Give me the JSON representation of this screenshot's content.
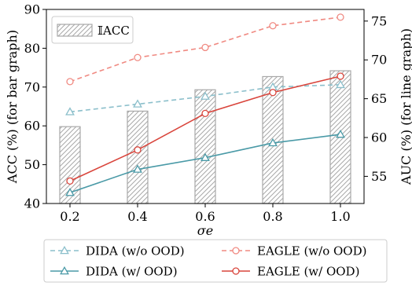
{
  "chart_data": {
    "type": "bar+line",
    "x": [
      0.2,
      0.4,
      0.6,
      0.8,
      1.0
    ],
    "xlabel": "σe",
    "ylabel_left": "ACC (%) (for bar graph)",
    "ylabel_right": "AUC (%) (for line graph)",
    "ylim_left": [
      40,
      90
    ],
    "ylim_right": [
      51.5,
      76.5
    ],
    "yticks_left": [
      40,
      50,
      60,
      70,
      80,
      90
    ],
    "yticks_right": [
      55,
      60,
      65,
      70,
      75
    ],
    "bars": {
      "name": "𝕀ACC",
      "values": [
        59.8,
        63.8,
        69.3,
        72.7,
        74.2
      ],
      "color": "#ffffff",
      "edge_color": "#a8a8a8",
      "hatch": "////"
    },
    "series": [
      {
        "name": "DIDA (w/o OOD)",
        "values": [
          63.3,
          64.3,
          65.3,
          66.5,
          66.8
        ],
        "color": "#8bbfcb",
        "marker": "triangle",
        "dashed": true
      },
      {
        "name": "DIDA (w/ OOD)",
        "values": [
          52.9,
          55.9,
          57.4,
          59.3,
          60.4
        ],
        "color": "#4a9aa7",
        "marker": "triangle",
        "dashed": false
      },
      {
        "name": "EAGLE (w/o OOD)",
        "values": [
          67.2,
          70.3,
          71.6,
          74.4,
          75.5
        ],
        "color": "#f08a82",
        "marker": "circle",
        "dashed": true
      },
      {
        "name": "EAGLE (w/ OOD)",
        "values": [
          54.4,
          58.4,
          63.1,
          65.8,
          67.9
        ],
        "color": "#d9453c",
        "marker": "circle",
        "dashed": false
      }
    ],
    "legend_inner_placement": "top-left",
    "legend_outer_placement": "bottom"
  }
}
